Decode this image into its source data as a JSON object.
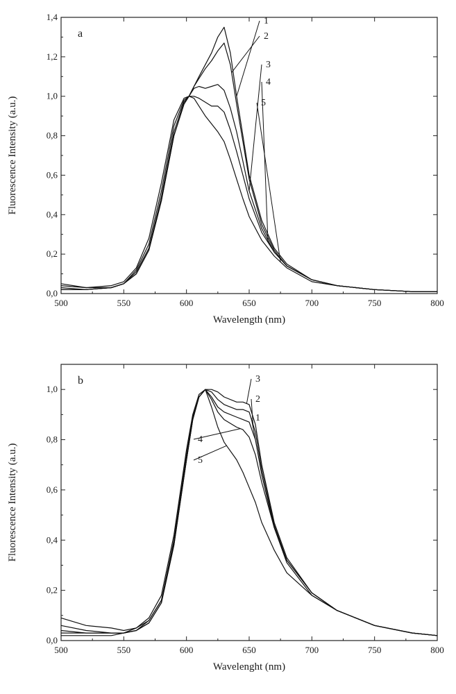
{
  "chart_data": [
    {
      "type": "line",
      "panel_label": "a",
      "xlabel": "Wavelength (nm)",
      "ylabel": "Fluorescence Intensity (a.u.)",
      "xlim": [
        500,
        800
      ],
      "ylim": [
        0,
        1.4
      ],
      "xticks": [
        500,
        550,
        600,
        650,
        700,
        750,
        800
      ],
      "xtick_labels": [
        "500",
        "550",
        "600",
        "650",
        "700",
        "750",
        "800"
      ],
      "yticks": [
        0,
        0.2,
        0.4,
        0.6,
        0.8,
        1.0,
        1.2,
        1.4
      ],
      "ytick_labels": [
        "0,0",
        "0,2",
        "0,4",
        "0,6",
        "0,8",
        "1,0",
        "1,2",
        "1,4"
      ],
      "x": [
        500,
        520,
        540,
        550,
        560,
        570,
        580,
        590,
        598,
        602,
        606,
        610,
        615,
        620,
        625,
        630,
        635,
        640,
        645,
        650,
        660,
        670,
        680,
        700,
        720,
        750,
        780,
        800
      ],
      "series": [
        {
          "name": "1",
          "values": [
            0.02,
            0.02,
            0.03,
            0.05,
            0.1,
            0.22,
            0.47,
            0.8,
            0.96,
            1.0,
            1.05,
            1.1,
            1.16,
            1.22,
            1.3,
            1.35,
            1.22,
            1.0,
            0.8,
            0.6,
            0.37,
            0.23,
            0.15,
            0.07,
            0.04,
            0.02,
            0.01,
            0.01
          ]
        },
        {
          "name": "2",
          "values": [
            0.02,
            0.02,
            0.03,
            0.05,
            0.1,
            0.22,
            0.47,
            0.8,
            0.96,
            1.0,
            1.05,
            1.09,
            1.14,
            1.18,
            1.23,
            1.27,
            1.16,
            0.96,
            0.77,
            0.58,
            0.35,
            0.22,
            0.14,
            0.07,
            0.04,
            0.02,
            0.01,
            0.01
          ]
        },
        {
          "name": "3",
          "values": [
            0.03,
            0.02,
            0.03,
            0.05,
            0.11,
            0.23,
            0.49,
            0.82,
            0.97,
            1.0,
            1.04,
            1.05,
            1.04,
            1.05,
            1.06,
            1.03,
            0.94,
            0.82,
            0.67,
            0.52,
            0.33,
            0.21,
            0.14,
            0.07,
            0.04,
            0.02,
            0.01,
            0.01
          ]
        },
        {
          "name": "4",
          "values": [
            0.04,
            0.03,
            0.03,
            0.05,
            0.12,
            0.25,
            0.52,
            0.85,
            0.98,
            1.0,
            1.0,
            0.99,
            0.97,
            0.95,
            0.95,
            0.92,
            0.83,
            0.72,
            0.6,
            0.48,
            0.31,
            0.21,
            0.14,
            0.07,
            0.04,
            0.02,
            0.01,
            0.01
          ]
        },
        {
          "name": "5",
          "values": [
            0.05,
            0.03,
            0.04,
            0.06,
            0.13,
            0.28,
            0.56,
            0.88,
            0.99,
            1.0,
            0.99,
            0.95,
            0.9,
            0.86,
            0.82,
            0.77,
            0.68,
            0.58,
            0.48,
            0.39,
            0.27,
            0.19,
            0.13,
            0.06,
            0.04,
            0.02,
            0.01,
            0.01
          ]
        }
      ]
    },
    {
      "type": "line",
      "panel_label": "b",
      "xlabel": "Wavelenght (nm)",
      "ylabel": "Fluorescence Intensity (a.u.)",
      "xlim": [
        500,
        800
      ],
      "ylim": [
        0,
        1.1
      ],
      "xticks": [
        500,
        550,
        600,
        650,
        700,
        750,
        800
      ],
      "xtick_labels": [
        "500",
        "550",
        "600",
        "650",
        "700",
        "750",
        "800"
      ],
      "yticks": [
        0,
        0.2,
        0.4,
        0.6,
        0.8,
        1.0
      ],
      "ytick_labels": [
        "0,0",
        "0,2",
        "0,4",
        "0,6",
        "0,8",
        "1,0"
      ],
      "x": [
        500,
        520,
        540,
        550,
        560,
        570,
        580,
        590,
        600,
        605,
        610,
        615,
        620,
        625,
        630,
        640,
        645,
        650,
        655,
        660,
        670,
        680,
        700,
        720,
        750,
        780,
        800
      ],
      "series": [
        {
          "name": "1",
          "values": [
            0.04,
            0.03,
            0.03,
            0.03,
            0.04,
            0.07,
            0.15,
            0.38,
            0.72,
            0.88,
            0.97,
            1.0,
            0.97,
            0.93,
            0.91,
            0.89,
            0.88,
            0.87,
            0.8,
            0.66,
            0.45,
            0.32,
            0.19,
            0.12,
            0.06,
            0.03,
            0.02
          ]
        },
        {
          "name": "2",
          "values": [
            0.06,
            0.04,
            0.03,
            0.03,
            0.04,
            0.07,
            0.15,
            0.38,
            0.72,
            0.88,
            0.97,
            1.0,
            0.99,
            0.96,
            0.94,
            0.92,
            0.92,
            0.91,
            0.83,
            0.68,
            0.46,
            0.32,
            0.19,
            0.12,
            0.06,
            0.03,
            0.02
          ]
        },
        {
          "name": "3",
          "values": [
            0.09,
            0.06,
            0.05,
            0.04,
            0.05,
            0.08,
            0.16,
            0.39,
            0.72,
            0.88,
            0.97,
            1.0,
            1.0,
            0.99,
            0.97,
            0.95,
            0.95,
            0.94,
            0.86,
            0.7,
            0.47,
            0.33,
            0.19,
            0.12,
            0.06,
            0.03,
            0.02
          ]
        },
        {
          "name": "4",
          "values": [
            0.03,
            0.03,
            0.03,
            0.03,
            0.04,
            0.08,
            0.16,
            0.4,
            0.74,
            0.89,
            0.97,
            1.0,
            0.96,
            0.91,
            0.88,
            0.85,
            0.84,
            0.81,
            0.74,
            0.63,
            0.45,
            0.31,
            0.18,
            0.12,
            0.06,
            0.03,
            0.02
          ]
        },
        {
          "name": "5",
          "values": [
            0.02,
            0.02,
            0.02,
            0.03,
            0.05,
            0.09,
            0.18,
            0.42,
            0.76,
            0.9,
            0.98,
            1.0,
            0.93,
            0.85,
            0.79,
            0.72,
            0.67,
            0.61,
            0.55,
            0.47,
            0.36,
            0.27,
            0.18,
            0.12,
            0.06,
            0.03,
            0.02
          ]
        }
      ]
    }
  ]
}
